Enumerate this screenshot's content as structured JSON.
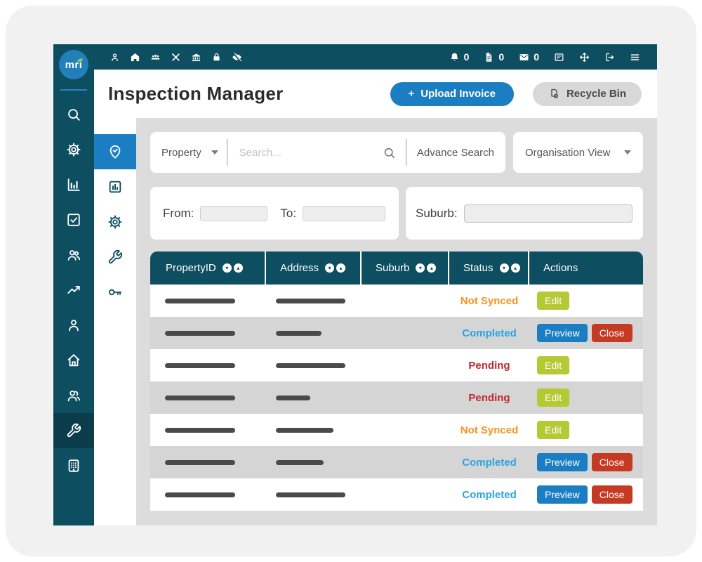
{
  "colors": {
    "teal": "#0e4e61",
    "teal_active_dark": "#0b3c4c",
    "accent_blue": "#1b7ec2",
    "logo_blue": "#2180b9",
    "logo_accent_green": "#a3c644",
    "content_bg": "#dcdcdc",
    "row_alt_gray": "#d5d5d5",
    "status_orange": "#f7941e",
    "status_blue": "#2aa4dd",
    "status_red": "#c1272d"
  },
  "logo": {
    "text": "mri"
  },
  "topbar": {
    "left_icons": [
      "user-icon",
      "home-icon",
      "team-icon",
      "tools-icon",
      "bank-icon",
      "lock-icon",
      "eye-off-icon"
    ],
    "counters": [
      {
        "icon": "bell-icon",
        "count": "0"
      },
      {
        "icon": "file-icon",
        "count": "0"
      },
      {
        "icon": "mail-icon",
        "count": "0"
      }
    ],
    "right_icons": [
      "id-card-icon",
      "move-icon",
      "logout-icon",
      "menu-icon"
    ]
  },
  "sidebar": {
    "items": [
      {
        "icon": "search-icon",
        "active": false
      },
      {
        "icon": "gear-icon",
        "active": false
      },
      {
        "icon": "bar-chart-icon",
        "active": false
      },
      {
        "icon": "check-square-icon",
        "active": false
      },
      {
        "icon": "users-icon",
        "active": false
      },
      {
        "icon": "trend-up-icon",
        "active": false
      },
      {
        "icon": "person-icon",
        "active": false
      },
      {
        "icon": "home-outline-icon",
        "active": false
      },
      {
        "icon": "people-icon",
        "active": false
      },
      {
        "icon": "wrench-icon",
        "active": true
      },
      {
        "icon": "building-icon",
        "active": false
      }
    ]
  },
  "subsidebar": {
    "items": [
      {
        "icon": "pin-check-icon",
        "active": true
      },
      {
        "icon": "chart-square-icon",
        "active": false
      },
      {
        "icon": "gear-icon",
        "active": false
      },
      {
        "icon": "wrench-icon",
        "active": false
      },
      {
        "icon": "key-icon",
        "active": false
      }
    ]
  },
  "header": {
    "title": "Inspection Manager",
    "upload_button": {
      "plus": "+",
      "label": "Upload Invoice"
    },
    "recycle_button": {
      "icon": "recycle-doc-icon",
      "label": "Recycle Bin"
    }
  },
  "search": {
    "category": "Property",
    "placeholder": "Search...",
    "advance_search": "Advance Search",
    "organisation_view": "Organisation View"
  },
  "filters": {
    "from_label": "From:",
    "from_value": "",
    "to_label": "To:",
    "to_value": "",
    "suburb_label": "Suburb:",
    "suburb_value": ""
  },
  "table": {
    "columns": [
      {
        "label": "PropertyID",
        "sortable": true
      },
      {
        "label": "Address",
        "sortable": true
      },
      {
        "label": "Suburb",
        "sortable": true
      },
      {
        "label": "Status",
        "sortable": true
      },
      {
        "label": "Actions",
        "sortable": false
      }
    ],
    "action_colors": {
      "Edit": "#b3ca35",
      "Preview": "#1b7ec2",
      "Close": "#c53a22"
    },
    "rows": [
      {
        "property_bar_w": 100,
        "address_bar_w": 99,
        "status": "Not Synced",
        "status_color": "#f7941e",
        "actions": [
          "Edit"
        ]
      },
      {
        "property_bar_w": 100,
        "address_bar_w": 65,
        "status": "Completed",
        "status_color": "#2aa4dd",
        "actions": [
          "Preview",
          "Close"
        ]
      },
      {
        "property_bar_w": 100,
        "address_bar_w": 99,
        "status": "Pending",
        "status_color": "#c1272d",
        "actions": [
          "Edit"
        ]
      },
      {
        "property_bar_w": 100,
        "address_bar_w": 49,
        "status": "Pending",
        "status_color": "#c1272d",
        "actions": [
          "Edit"
        ]
      },
      {
        "property_bar_w": 100,
        "address_bar_w": 82,
        "status": "Not Synced",
        "status_color": "#f7941e",
        "actions": [
          "Edit"
        ]
      },
      {
        "property_bar_w": 100,
        "address_bar_w": 68,
        "status": "Completed",
        "status_color": "#2aa4dd",
        "actions": [
          "Preview",
          "Close"
        ]
      },
      {
        "property_bar_w": 100,
        "address_bar_w": 99,
        "status": "Completed",
        "status_color": "#2aa4dd",
        "actions": [
          "Preview",
          "Close"
        ]
      }
    ]
  }
}
